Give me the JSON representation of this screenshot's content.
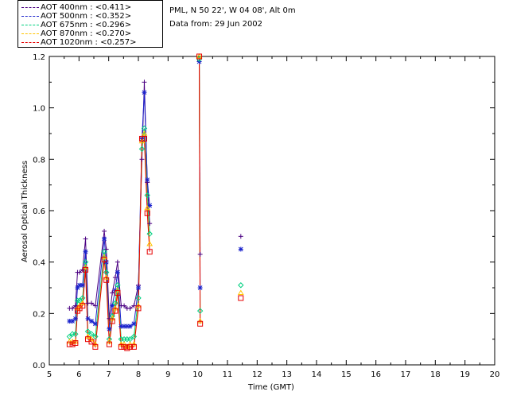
{
  "legend": [
    {
      "label": "AOT  400nm : <0.411>",
      "color": "#4b0082"
    },
    {
      "label": "AOT  500nm : <0.352>",
      "color": "#1a22cc"
    },
    {
      "label": "AOT  675nm : <0.296>",
      "color": "#00d080"
    },
    {
      "label": "AOT  870nm : <0.270>",
      "color": "#ffc400"
    },
    {
      "label": "AOT 1020nm : <0.257>",
      "color": "#e60000"
    }
  ],
  "info": {
    "location": "PML, N 50 22', W 04 08', Alt 0m",
    "date": "Data from: 29 Jun 2002"
  },
  "chart_data": {
    "type": "line",
    "xlabel": "Time (GMT)",
    "ylabel": "Aerosol Optical Thickness",
    "xlim": [
      5,
      20
    ],
    "ylim": [
      0,
      1.2
    ],
    "xticks": [
      "5",
      "6",
      "7",
      "8",
      "9",
      "10",
      "11",
      "12",
      "13",
      "14",
      "15",
      "16",
      "17",
      "18",
      "19",
      "20"
    ],
    "yticks": [
      "0.0",
      "0.2",
      "0.4",
      "0.6",
      "0.8",
      "1.0",
      "1.2"
    ],
    "series": [
      {
        "name": "AOT  400nm",
        "marker": "plus",
        "color": "#4b0082",
        "x": [
          5.68,
          5.78,
          5.88,
          5.95,
          6.02,
          6.12,
          6.22,
          6.3,
          6.42,
          6.55,
          6.85,
          6.92,
          7.02,
          7.12,
          7.22,
          7.3,
          7.42,
          7.52,
          7.62,
          7.72,
          7.85,
          8.0,
          8.12,
          8.2,
          8.3,
          8.38,
          10.05,
          10.08,
          11.45
        ],
        "y": [
          0.22,
          0.22,
          0.23,
          0.36,
          0.36,
          0.37,
          0.49,
          0.24,
          0.24,
          0.23,
          0.52,
          0.45,
          0.18,
          0.28,
          0.34,
          0.4,
          0.23,
          0.23,
          0.22,
          0.22,
          0.23,
          0.31,
          0.8,
          1.1,
          0.71,
          0.55,
          1.18,
          0.43,
          0.5
        ]
      },
      {
        "name": "AOT  500nm",
        "marker": "star",
        "color": "#1a22cc",
        "x": [
          5.68,
          5.78,
          5.88,
          5.95,
          6.02,
          6.12,
          6.22,
          6.3,
          6.42,
          6.55,
          6.85,
          6.92,
          7.02,
          7.12,
          7.22,
          7.3,
          7.42,
          7.52,
          7.62,
          7.72,
          7.85,
          8.0,
          8.12,
          8.2,
          8.3,
          8.38,
          10.05,
          10.08,
          11.45
        ],
        "y": [
          0.17,
          0.17,
          0.18,
          0.3,
          0.31,
          0.31,
          0.44,
          0.18,
          0.17,
          0.16,
          0.49,
          0.4,
          0.14,
          0.23,
          0.29,
          0.36,
          0.15,
          0.15,
          0.15,
          0.15,
          0.16,
          0.3,
          0.88,
          1.06,
          0.72,
          0.62,
          1.18,
          0.3,
          0.45
        ]
      },
      {
        "name": "AOT  675nm",
        "marker": "diamond",
        "color": "#00d080",
        "x": [
          5.68,
          5.78,
          5.88,
          5.95,
          6.02,
          6.12,
          6.22,
          6.3,
          6.42,
          6.55,
          6.85,
          6.92,
          7.02,
          7.12,
          7.22,
          7.3,
          7.42,
          7.52,
          7.62,
          7.72,
          7.85,
          8.0,
          8.12,
          8.2,
          8.3,
          8.38,
          10.05,
          10.08,
          11.45
        ],
        "y": [
          0.11,
          0.12,
          0.12,
          0.25,
          0.25,
          0.26,
          0.4,
          0.13,
          0.12,
          0.11,
          0.44,
          0.36,
          0.1,
          0.19,
          0.24,
          0.31,
          0.1,
          0.1,
          0.1,
          0.1,
          0.11,
          0.26,
          0.84,
          0.92,
          0.66,
          0.51,
          1.19,
          0.21,
          0.31
        ]
      },
      {
        "name": "AOT  870nm",
        "marker": "triangle",
        "color": "#ffc400",
        "x": [
          5.68,
          5.78,
          5.88,
          5.95,
          6.02,
          6.12,
          6.22,
          6.3,
          6.42,
          6.55,
          6.85,
          6.92,
          7.02,
          7.12,
          7.22,
          7.3,
          7.42,
          7.52,
          7.62,
          7.72,
          7.85,
          8.0,
          8.12,
          8.2,
          8.3,
          8.38,
          10.05,
          10.08,
          11.45
        ],
        "y": [
          0.09,
          0.09,
          0.09,
          0.22,
          0.23,
          0.24,
          0.38,
          0.11,
          0.1,
          0.08,
          0.42,
          0.34,
          0.09,
          0.18,
          0.22,
          0.29,
          0.08,
          0.08,
          0.07,
          0.08,
          0.08,
          0.23,
          0.87,
          0.9,
          0.61,
          0.47,
          1.2,
          0.17,
          0.28
        ]
      },
      {
        "name": "AOT 1020nm",
        "marker": "square",
        "color": "#e60000",
        "x": [
          5.68,
          5.78,
          5.88,
          5.95,
          6.02,
          6.12,
          6.22,
          6.3,
          6.42,
          6.55,
          6.85,
          6.92,
          7.02,
          7.12,
          7.22,
          7.3,
          7.42,
          7.52,
          7.62,
          7.72,
          7.85,
          8.0,
          8.12,
          8.2,
          8.3,
          8.38,
          10.05,
          10.08,
          11.45
        ],
        "y": [
          0.08,
          0.08,
          0.085,
          0.21,
          0.22,
          0.23,
          0.37,
          0.1,
          0.09,
          0.07,
          0.41,
          0.33,
          0.08,
          0.17,
          0.21,
          0.28,
          0.07,
          0.07,
          0.065,
          0.07,
          0.07,
          0.22,
          0.88,
          0.88,
          0.59,
          0.44,
          1.2,
          0.16,
          0.26
        ]
      }
    ]
  }
}
